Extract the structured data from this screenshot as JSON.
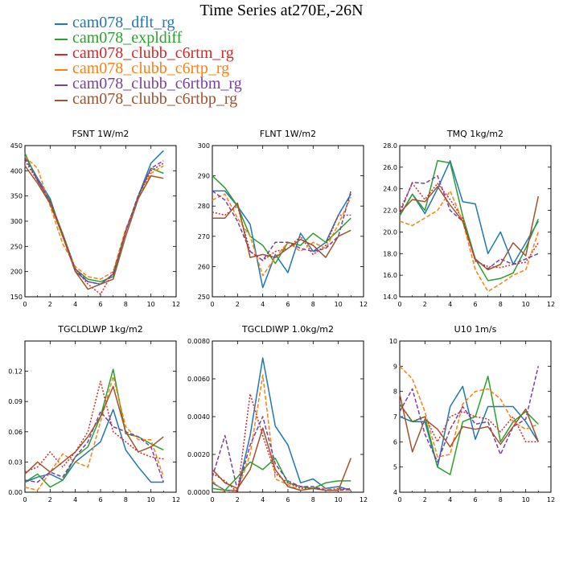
{
  "title": "Time Series at270E,-26N",
  "legend": {
    "placement": "top-left",
    "entries": [
      {
        "name": "cam078_dflt_rg",
        "color": "#1f77b4"
      },
      {
        "name": "cam078_expldiff",
        "color": "#2ca02c"
      },
      {
        "name": "cam078_clubb_c6rtm_rg",
        "color": "#d62728"
      },
      {
        "name": "cam078_clubb_c6rtp_rg",
        "color": "#ff7f0e"
      },
      {
        "name": "cam078_clubb_c6rtbm_rg",
        "color": "#7b3fa0"
      },
      {
        "name": "cam078_clubb_c6rtbp_rg",
        "color": "#a0522d"
      }
    ]
  },
  "chart_data": [
    {
      "type": "line",
      "title": "FSNT   1W/m2",
      "x": [
        0,
        1,
        2,
        3,
        4,
        5,
        6,
        7,
        8,
        9,
        10,
        11
      ],
      "xlim": [
        0,
        12
      ],
      "xticks": [
        0,
        2,
        4,
        6,
        8,
        10,
        12
      ],
      "ylim": [
        150,
        450
      ],
      "yticks": [
        150,
        200,
        250,
        300,
        350,
        400,
        450
      ],
      "ytick_labels": [
        "150",
        "200",
        "250",
        "300",
        "350",
        "400",
        "450"
      ],
      "series": [
        {
          "name": "cam078_dflt_rg",
          "style": "solid",
          "values": [
            430,
            385,
            345,
            270,
            200,
            180,
            175,
            195,
            280,
            350,
            415,
            440
          ]
        },
        {
          "name": "cam078_expldiff",
          "style": "solid",
          "values": [
            435,
            380,
            340,
            275,
            205,
            185,
            180,
            190,
            280,
            350,
            405,
            395
          ]
        },
        {
          "name": "cam078_clubb_c6rtm_rg",
          "style": "dotted",
          "values": [
            420,
            380,
            340,
            275,
            205,
            175,
            155,
            200,
            280,
            350,
            400,
            415
          ]
        },
        {
          "name": "cam078_clubb_c6rtp_rg",
          "style": "dashed",
          "values": [
            428,
            405,
            330,
            255,
            210,
            190,
            185,
            200,
            285,
            345,
            395,
            410
          ]
        },
        {
          "name": "cam078_clubb_c6rtbm_rg",
          "style": "dashed",
          "values": [
            425,
            382,
            338,
            270,
            205,
            180,
            175,
            195,
            280,
            352,
            405,
            420
          ]
        },
        {
          "name": "cam078_clubb_c6rtbp_rg",
          "style": "solid",
          "values": [
            410,
            375,
            335,
            270,
            200,
            165,
            175,
            185,
            270,
            345,
            390,
            385
          ]
        }
      ]
    },
    {
      "type": "line",
      "title": "FLNT   1W/m2",
      "x": [
        0,
        1,
        2,
        3,
        4,
        5,
        6,
        7,
        8,
        9,
        10,
        11
      ],
      "xlim": [
        0,
        12
      ],
      "xticks": [
        0,
        2,
        4,
        6,
        8,
        10,
        12
      ],
      "ylim": [
        250,
        300
      ],
      "yticks": [
        250,
        260,
        270,
        280,
        290,
        300
      ],
      "ytick_labels": [
        "250",
        "260",
        "270",
        "280",
        "290",
        "300"
      ],
      "series": [
        {
          "name": "cam078_dflt_rg",
          "style": "solid",
          "values": [
            285,
            285,
            280,
            274,
            253,
            264,
            258,
            271,
            265,
            268,
            277,
            284
          ]
        },
        {
          "name": "cam078_expldiff",
          "style": "solid",
          "values": [
            290,
            286,
            280,
            270,
            267,
            261,
            268,
            267,
            271,
            268,
            272,
            276
          ]
        },
        {
          "name": "cam078_clubb_c6rtm_rg",
          "style": "dotted",
          "values": [
            278,
            277,
            280,
            265,
            262,
            265,
            266,
            270,
            264,
            267,
            277,
            277
          ]
        },
        {
          "name": "cam078_clubb_c6rtp_rg",
          "style": "dashed",
          "values": [
            282,
            284,
            276,
            270,
            257,
            263,
            268,
            265,
            268,
            266,
            274,
            283
          ]
        },
        {
          "name": "cam078_clubb_c6rtbm_rg",
          "style": "dashed",
          "values": [
            285,
            282,
            275,
            265,
            262,
            268,
            268,
            266,
            265,
            266,
            270,
            285
          ]
        },
        {
          "name": "cam078_clubb_c6rtbp_rg",
          "style": "solid",
          "values": [
            276,
            276,
            281,
            263,
            264,
            263,
            266,
            269,
            267,
            263,
            270,
            272
          ]
        }
      ]
    },
    {
      "type": "line",
      "title": "TMQ   1kg/m2",
      "x": [
        0,
        1,
        2,
        3,
        4,
        5,
        6,
        7,
        8,
        9,
        10,
        11
      ],
      "xlim": [
        0,
        12
      ],
      "xticks": [
        0,
        2,
        4,
        6,
        8,
        10,
        12
      ],
      "ylim": [
        14,
        28
      ],
      "yticks": [
        14,
        16,
        18,
        20,
        22,
        24,
        26,
        28
      ],
      "ytick_labels": [
        "14.0",
        "16.0",
        "18.0",
        "20.0",
        "22.0",
        "24.0",
        "26.0",
        "28.0"
      ],
      "series": [
        {
          "name": "cam078_dflt_rg",
          "style": "solid",
          "values": [
            21.5,
            23.5,
            21.7,
            24.0,
            26.6,
            22.8,
            22.6,
            18.0,
            20.0,
            17.0,
            19.0,
            21.0
          ]
        },
        {
          "name": "cam078_expldiff",
          "style": "solid",
          "values": [
            21.5,
            23.5,
            22.0,
            26.6,
            26.4,
            21.5,
            17.5,
            15.5,
            15.7,
            16.2,
            18.5,
            21.2
          ]
        },
        {
          "name": "cam078_clubb_c6rtm_rg",
          "style": "dotted",
          "values": [
            22.0,
            24.5,
            23.0,
            24.5,
            23.0,
            21.2,
            17.3,
            16.8,
            16.7,
            17.0,
            17.2,
            19.0
          ]
        },
        {
          "name": "cam078_clubb_c6rtp_rg",
          "style": "dashed",
          "values": [
            21.0,
            20.6,
            21.3,
            22.0,
            23.8,
            21.0,
            16.5,
            14.5,
            15.2,
            16.0,
            16.5,
            20.0
          ]
        },
        {
          "name": "cam078_clubb_c6rtbm_rg",
          "style": "dashed",
          "values": [
            21.7,
            24.6,
            24.5,
            25.2,
            22.0,
            21.0,
            17.4,
            16.6,
            17.5,
            17.0,
            17.5,
            18.0
          ]
        },
        {
          "name": "cam078_clubb_c6rtbp_rg",
          "style": "solid",
          "values": [
            21.8,
            23.0,
            22.8,
            24.2,
            22.5,
            21.0,
            17.5,
            16.5,
            17.0,
            19.0,
            17.8,
            23.3
          ]
        }
      ]
    },
    {
      "type": "line",
      "title": "TGCLDLWP   1kg/m2",
      "x": [
        0,
        1,
        2,
        3,
        4,
        5,
        6,
        7,
        8,
        9,
        10,
        11
      ],
      "xlim": [
        0,
        12
      ],
      "xticks": [
        0,
        2,
        4,
        6,
        8,
        10,
        12
      ],
      "ylim": [
        0,
        0.15
      ],
      "yticks": [
        0,
        0.03,
        0.06,
        0.09,
        0.12,
        0.15
      ],
      "ytick_labels": [
        "0.00",
        "0.03",
        "0.06",
        "0.09",
        "0.12",
        ""
      ],
      "series": [
        {
          "name": "cam078_dflt_rg",
          "style": "solid",
          "values": [
            0.01,
            0.015,
            0.018,
            0.012,
            0.03,
            0.04,
            0.05,
            0.082,
            0.042,
            0.025,
            0.01,
            0.01
          ]
        },
        {
          "name": "cam078_expldiff",
          "style": "solid",
          "values": [
            0.01,
            0.018,
            0.005,
            0.012,
            0.035,
            0.045,
            0.075,
            0.122,
            0.058,
            0.055,
            0.048,
            0.042
          ]
        },
        {
          "name": "cam078_clubb_c6rtm_rg",
          "style": "dotted",
          "values": [
            0.02,
            0.025,
            0.04,
            0.025,
            0.04,
            0.06,
            0.11,
            0.06,
            0.05,
            0.04,
            0.035,
            0.033
          ]
        },
        {
          "name": "cam078_clubb_c6rtp_rg",
          "style": "dashed",
          "values": [
            0.005,
            0.002,
            0.02,
            0.038,
            0.03,
            0.025,
            0.07,
            0.115,
            0.065,
            0.052,
            0.052,
            0.015
          ]
        },
        {
          "name": "cam078_clubb_c6rtbm_rg",
          "style": "dashed",
          "values": [
            0.012,
            0.01,
            0.02,
            0.015,
            0.035,
            0.05,
            0.08,
            0.065,
            0.06,
            0.055,
            0.045,
            0.01
          ]
        },
        {
          "name": "cam078_clubb_c6rtbp_rg",
          "style": "solid",
          "values": [
            0.018,
            0.03,
            0.02,
            0.03,
            0.04,
            0.055,
            0.075,
            0.105,
            0.06,
            0.04,
            0.045,
            0.055
          ]
        }
      ]
    },
    {
      "type": "line",
      "title": "TGCLDIWP   1.0kg/m2",
      "x": [
        0,
        1,
        2,
        3,
        4,
        5,
        6,
        7,
        8,
        9,
        10,
        11
      ],
      "xlim": [
        0,
        12
      ],
      "xticks": [
        0,
        2,
        4,
        6,
        8,
        10,
        12
      ],
      "ylim": [
        0,
        0.008
      ],
      "yticks": [
        0,
        0.002,
        0.004,
        0.006,
        0.008
      ],
      "ytick_labels": [
        "0.0000",
        "0.0020",
        "0.0040",
        "0.0060",
        "0.0080"
      ],
      "series": [
        {
          "name": "cam078_dflt_rg",
          "style": "solid",
          "values": [
            0.0005,
            0.0001,
            0.0001,
            0.003,
            0.0071,
            0.0035,
            0.0025,
            0.0005,
            0.0007,
            0.0002,
            0.0003,
            0.0001
          ]
        },
        {
          "name": "cam078_expldiff",
          "style": "solid",
          "values": [
            0.0002,
            0.0001,
            0.0008,
            0.0016,
            0.0012,
            0.0018,
            0.0005,
            0.0003,
            0.0002,
            0.0005,
            0.0006,
            0.0006
          ]
        },
        {
          "name": "cam078_clubb_c6rtm_rg",
          "style": "dotted",
          "values": [
            0.001,
            0.0006,
            0.0,
            0.0052,
            0.003,
            0.001,
            0.0005,
            0.0002,
            0.0002,
            0.0001,
            0.0002,
            0.0001
          ]
        },
        {
          "name": "cam078_clubb_c6rtp_rg",
          "style": "dashed",
          "values": [
            0.0006,
            0.0,
            0.0001,
            0.002,
            0.0062,
            0.0007,
            0.0004,
            0.0001,
            0.0002,
            0.0002,
            0.0001,
            0.0001
          ]
        },
        {
          "name": "cam078_clubb_c6rtbm_rg",
          "style": "dashed",
          "values": [
            0.0008,
            0.003,
            0.0001,
            0.0025,
            0.004,
            0.0015,
            0.0006,
            0.0003,
            0.0003,
            0.0001,
            0.0001,
            0.0002
          ]
        },
        {
          "name": "cam078_clubb_c6rtbp_rg",
          "style": "solid",
          "values": [
            0.0012,
            0.0005,
            0.0002,
            0.0012,
            0.0034,
            0.0012,
            0.0003,
            0.0001,
            0.0002,
            0.0001,
            0.0001,
            0.0018
          ]
        }
      ]
    },
    {
      "type": "line",
      "title": "U10   1m/s",
      "x": [
        0,
        1,
        2,
        3,
        4,
        5,
        6,
        7,
        8,
        9,
        10,
        11
      ],
      "xlim": [
        0,
        12
      ],
      "xticks": [
        0,
        2,
        4,
        6,
        8,
        10,
        12
      ],
      "ylim": [
        4,
        10
      ],
      "yticks": [
        4,
        5,
        6,
        7,
        8,
        9,
        10
      ],
      "ytick_labels": [
        "4",
        "5",
        "6",
        "7",
        "8",
        "9",
        "10"
      ],
      "series": [
        {
          "name": "cam078_dflt_rg",
          "style": "solid",
          "values": [
            7.0,
            6.8,
            6.8,
            5.0,
            7.4,
            8.2,
            6.1,
            7.4,
            7.4,
            7.4,
            6.8,
            6.0
          ]
        },
        {
          "name": "cam078_expldiff",
          "style": "solid",
          "values": [
            7.5,
            6.8,
            7.0,
            5.0,
            4.7,
            6.8,
            7.0,
            8.6,
            6.0,
            6.8,
            7.2,
            6.7
          ]
        },
        {
          "name": "cam078_clubb_c6rtm_rg",
          "style": "dotted",
          "values": [
            7.5,
            6.8,
            7.0,
            6.0,
            7.0,
            7.2,
            7.0,
            6.9,
            6.4,
            7.0,
            6.0,
            6.0
          ]
        },
        {
          "name": "cam078_clubb_c6rtp_rg",
          "style": "dashed",
          "values": [
            9.0,
            8.5,
            7.2,
            5.4,
            5.5,
            7.5,
            8.0,
            8.1,
            7.7,
            6.8,
            6.5,
            6.7
          ]
        },
        {
          "name": "cam078_clubb_c6rtbm_rg",
          "style": "dashed",
          "values": [
            7.2,
            8.1,
            6.3,
            5.2,
            6.5,
            7.4,
            6.7,
            6.8,
            5.5,
            6.6,
            6.9,
            9.0
          ]
        },
        {
          "name": "cam078_clubb_c6rtbp_rg",
          "style": "solid",
          "values": [
            7.9,
            5.6,
            6.9,
            6.5,
            5.8,
            6.6,
            6.5,
            6.6,
            5.9,
            6.6,
            7.3,
            6.0
          ]
        }
      ]
    }
  ]
}
